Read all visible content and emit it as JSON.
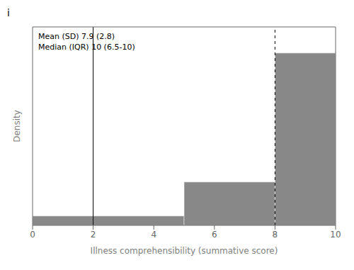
{
  "chart_data": {
    "type": "histogram",
    "title": "i",
    "x_label": "Illness comprehensibility (summative score)",
    "y_label": "Density",
    "annotations": [
      "Mean (SD) 7.9 (2.8)",
      "Median (IQR) 10 (6.5-10)"
    ],
    "bins": [
      0,
      2,
      5,
      8,
      10
    ],
    "values": [
      0.018,
      0.018,
      0.083,
      0.33
    ],
    "color": "#888888",
    "xlim": [
      0,
      10
    ],
    "ylim": [
      0,
      0.38
    ],
    "xticks": [
      0,
      2,
      4,
      6,
      8,
      10
    ],
    "tick_labels": "x",
    "grid": false,
    "lines": [
      {
        "x": 2,
        "line_style": "solid",
        "color": "#000000"
      },
      {
        "x": 8,
        "line_style": "dashed",
        "color": "#000000"
      }
    ]
  }
}
